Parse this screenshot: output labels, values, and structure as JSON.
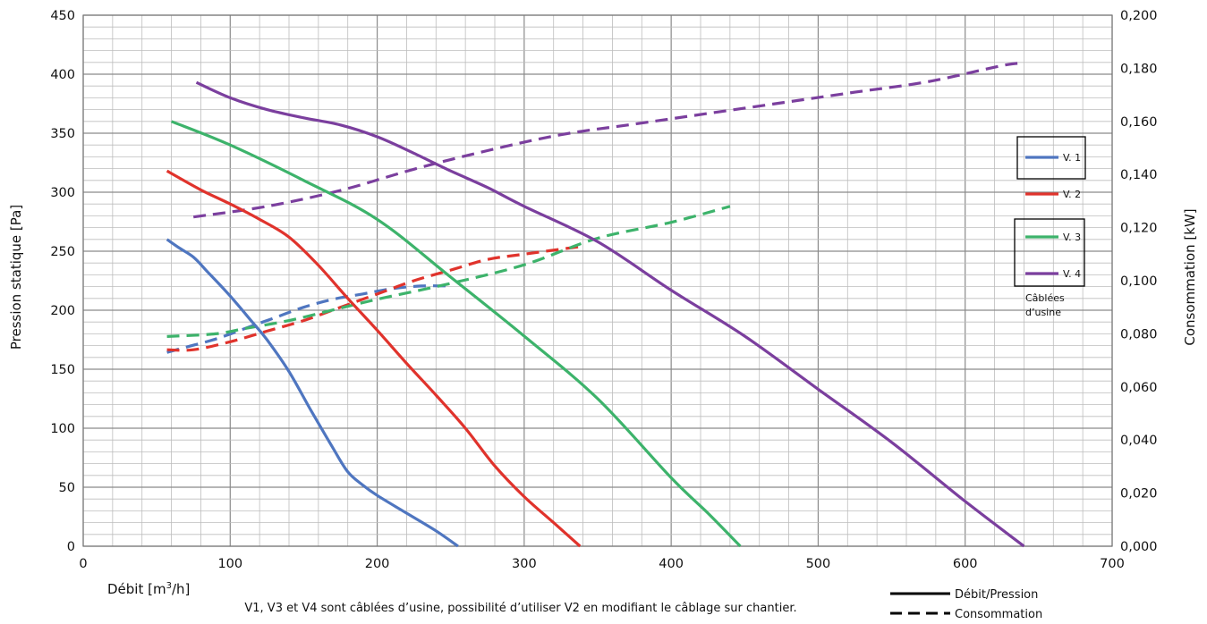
{
  "chart_data": {
    "type": "line",
    "xlabel": "Débit [m³/h]",
    "ylabel": "Pression statique [Pa]",
    "y2label": "Consommation [kW]",
    "xlim": [
      0,
      700
    ],
    "ylim": [
      0,
      450
    ],
    "y2lim": [
      0,
      0.2
    ],
    "x_ticks": [
      0,
      100,
      200,
      300,
      400,
      500,
      600,
      700
    ],
    "y_ticks": [
      0,
      50,
      100,
      150,
      200,
      250,
      300,
      350,
      400,
      450
    ],
    "y2_ticks": [
      "0,000",
      "0,020",
      "0,040",
      "0,060",
      "0,080",
      "0,100",
      "0,120",
      "0,140",
      "0,160",
      "0,180",
      "0,200"
    ],
    "grid": true,
    "note": "V1, V3 et V4 sont câblées d’usine, possibilité d’utiliser V2 en modifiant le câblage sur chantier.",
    "legend_note": "Câblées d’usine",
    "style_legend": {
      "solid": "Débit/Pression",
      "dashed": "Consommation"
    },
    "series": [
      {
        "name": "V. 1",
        "color": "#4f76c0",
        "pressure": [
          [
            57,
            260
          ],
          [
            65,
            253
          ],
          [
            75,
            245
          ],
          [
            85,
            232
          ],
          [
            100,
            212
          ],
          [
            115,
            190
          ],
          [
            125,
            175
          ],
          [
            140,
            148
          ],
          [
            155,
            115
          ],
          [
            170,
            83
          ],
          [
            180,
            63
          ],
          [
            190,
            52
          ],
          [
            200,
            43
          ],
          [
            220,
            28
          ],
          [
            240,
            13
          ],
          [
            255,
            0
          ]
        ],
        "power": [
          [
            57,
            0.073
          ],
          [
            70,
            0.075
          ],
          [
            90,
            0.078
          ],
          [
            110,
            0.082
          ],
          [
            130,
            0.086
          ],
          [
            150,
            0.09
          ],
          [
            170,
            0.093
          ],
          [
            190,
            0.095
          ],
          [
            210,
            0.097
          ],
          [
            230,
            0.098
          ],
          [
            250,
            0.098
          ]
        ]
      },
      {
        "name": "V. 2",
        "color": "#e0332c",
        "pressure": [
          [
            57,
            318
          ],
          [
            80,
            302
          ],
          [
            100,
            290
          ],
          [
            120,
            277
          ],
          [
            140,
            262
          ],
          [
            160,
            238
          ],
          [
            180,
            210
          ],
          [
            200,
            183
          ],
          [
            220,
            155
          ],
          [
            240,
            128
          ],
          [
            260,
            100
          ],
          [
            280,
            68
          ],
          [
            300,
            42
          ],
          [
            320,
            20
          ],
          [
            338,
            0
          ]
        ],
        "power": [
          [
            57,
            0.074
          ],
          [
            75,
            0.074
          ],
          [
            100,
            0.077
          ],
          [
            125,
            0.081
          ],
          [
            150,
            0.085
          ],
          [
            175,
            0.09
          ],
          [
            200,
            0.095
          ],
          [
            225,
            0.1
          ],
          [
            250,
            0.104
          ],
          [
            275,
            0.108
          ],
          [
            300,
            0.11
          ],
          [
            340,
            0.113
          ]
        ]
      },
      {
        "name": "V. 3",
        "color": "#3db36b",
        "pressure": [
          [
            60,
            360
          ],
          [
            100,
            340
          ],
          [
            150,
            310
          ],
          [
            200,
            277
          ],
          [
            250,
            228
          ],
          [
            300,
            178
          ],
          [
            350,
            125
          ],
          [
            400,
            58
          ],
          [
            425,
            28
          ],
          [
            447,
            0
          ]
        ],
        "power": [
          [
            57,
            0.079
          ],
          [
            90,
            0.08
          ],
          [
            110,
            0.082
          ],
          [
            140,
            0.085
          ],
          [
            170,
            0.089
          ],
          [
            200,
            0.093
          ],
          [
            250,
            0.099
          ],
          [
            300,
            0.106
          ],
          [
            350,
            0.116
          ],
          [
            400,
            0.122
          ],
          [
            440,
            0.128
          ]
        ]
      },
      {
        "name": "V. 4",
        "color": "#7b3f9e",
        "pressure": [
          [
            77,
            393
          ],
          [
            100,
            380
          ],
          [
            125,
            370
          ],
          [
            150,
            363
          ],
          [
            175,
            357
          ],
          [
            200,
            347
          ],
          [
            225,
            333
          ],
          [
            250,
            318
          ],
          [
            275,
            304
          ],
          [
            300,
            288
          ],
          [
            350,
            258
          ],
          [
            400,
            217
          ],
          [
            450,
            178
          ],
          [
            500,
            133
          ],
          [
            550,
            88
          ],
          [
            600,
            38
          ],
          [
            640,
            0
          ]
        ],
        "power": [
          [
            75,
            0.124
          ],
          [
            125,
            0.128
          ],
          [
            175,
            0.134
          ],
          [
            225,
            0.142
          ],
          [
            275,
            0.149
          ],
          [
            325,
            0.155
          ],
          [
            375,
            0.159
          ],
          [
            425,
            0.163
          ],
          [
            475,
            0.167
          ],
          [
            525,
            0.171
          ],
          [
            575,
            0.175
          ],
          [
            625,
            0.181
          ],
          [
            640,
            0.182
          ]
        ]
      }
    ]
  }
}
